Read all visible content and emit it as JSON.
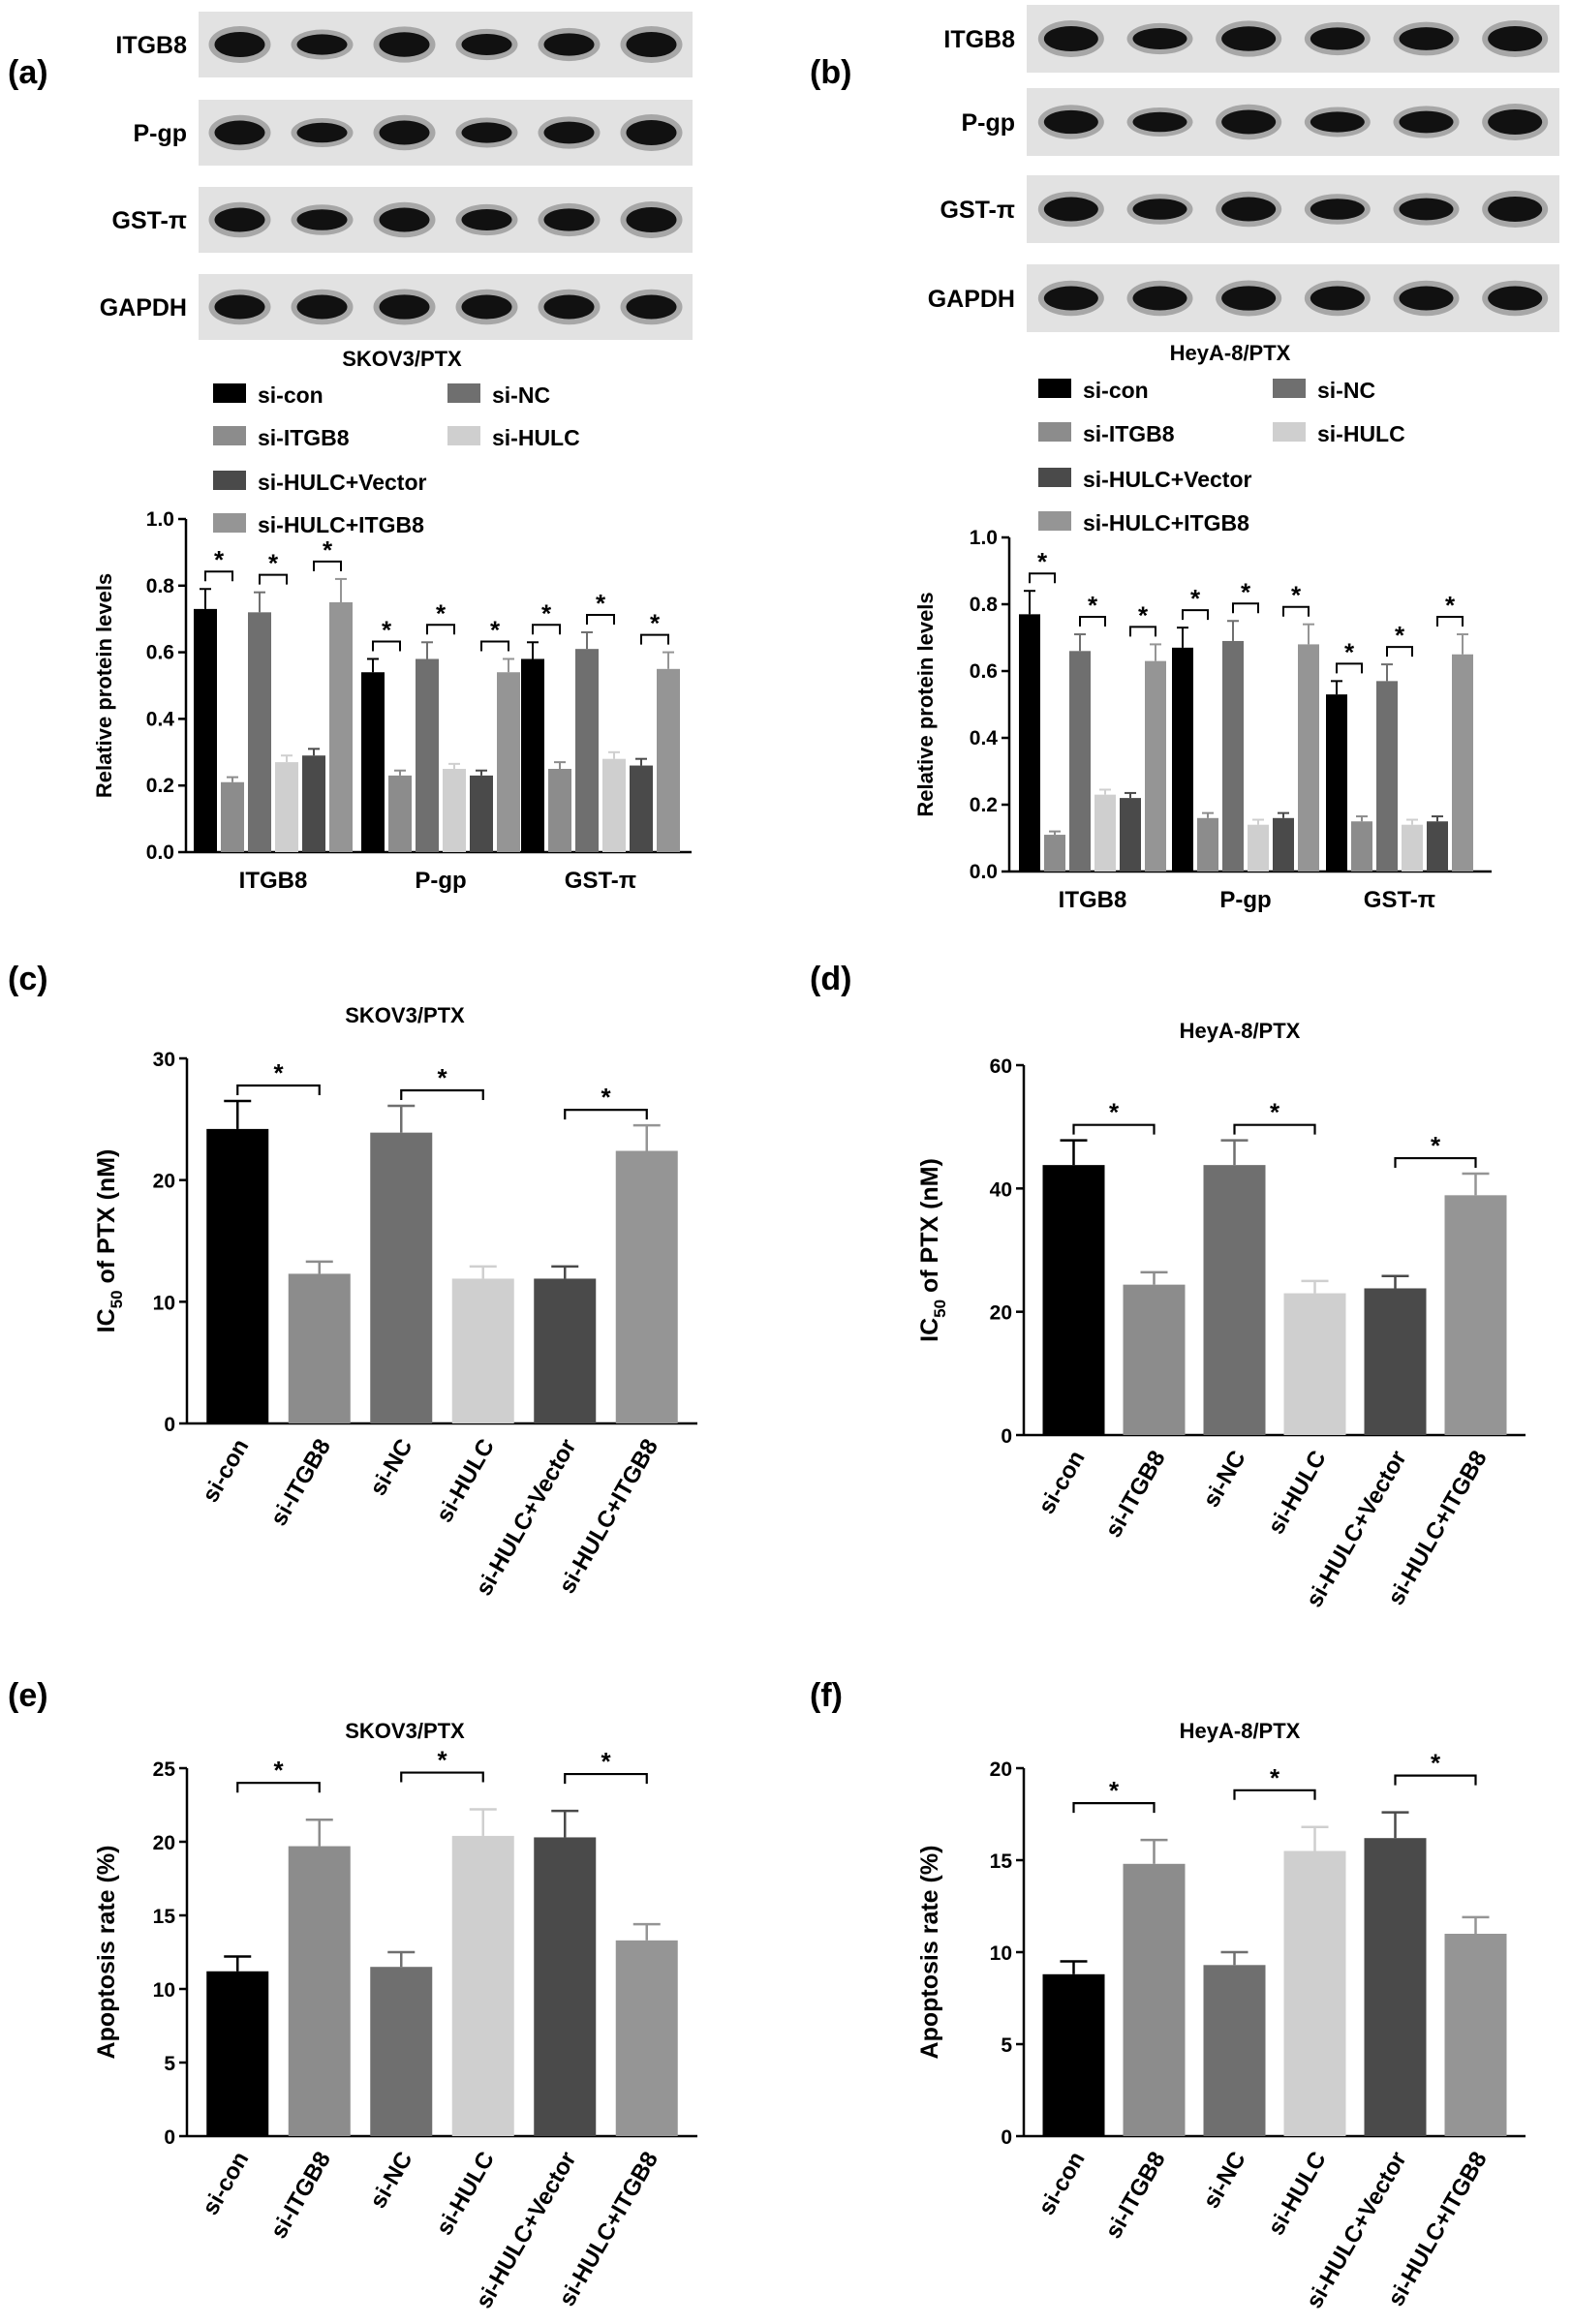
{
  "figure": {
    "panel_labels": [
      "(a)",
      "(b)",
      "(c)",
      "(d)",
      "(e)",
      "(f)"
    ],
    "significance_symbol": "*",
    "legend_labels": [
      "si-con",
      "si-NC",
      "si-ITGB8",
      "si-HULC",
      "si-HULC+Vector",
      "si-HULC+ITGB8"
    ],
    "colors": {
      "si-con": "#000000",
      "si-ITGB8": "#8c8c8c",
      "si-NC": "#6f6f6f",
      "si-HULC": "#cfcfcf",
      "si-HULC+Vector": "#4a4a4a",
      "si-HULC+ITGB8": "#959595"
    }
  },
  "blots": [
    {
      "panel": "(a)",
      "rows": [
        "ITGB8",
        "P-gp",
        "GST-π",
        "GAPDH"
      ]
    },
    {
      "panel": "(b)",
      "rows": [
        "ITGB8",
        "P-gp",
        "GST-π",
        "GAPDH"
      ]
    }
  ],
  "chart_data": [
    {
      "panel": "(a)",
      "type": "bar",
      "title": "SKOV3/PTX",
      "xlabel": "",
      "ylabel": "Relative protein levels",
      "ylim": [
        0,
        1.0
      ],
      "yticks": [
        "0.0",
        "0.2",
        "0.4",
        "0.6",
        "0.8",
        "1.0"
      ],
      "categories": [
        "ITGB8",
        "P-gp",
        "GST-π"
      ],
      "series": [
        {
          "name": "si-con",
          "values": [
            0.73,
            0.54,
            0.58
          ],
          "errors": [
            0.06,
            0.04,
            0.05
          ]
        },
        {
          "name": "si-ITGB8",
          "values": [
            0.21,
            0.23,
            0.25
          ],
          "errors": [
            0.015,
            0.015,
            0.02
          ]
        },
        {
          "name": "si-NC",
          "values": [
            0.72,
            0.58,
            0.61
          ],
          "errors": [
            0.06,
            0.05,
            0.05
          ]
        },
        {
          "name": "si-HULC",
          "values": [
            0.27,
            0.25,
            0.28
          ],
          "errors": [
            0.02,
            0.015,
            0.02
          ]
        },
        {
          "name": "si-HULC+Vector",
          "values": [
            0.29,
            0.23,
            0.26
          ],
          "errors": [
            0.02,
            0.015,
            0.02
          ]
        },
        {
          "name": "si-HULC+ITGB8",
          "values": [
            0.75,
            0.54,
            0.55
          ],
          "errors": [
            0.07,
            0.04,
            0.05
          ]
        }
      ],
      "significance": "*"
    },
    {
      "panel": "(b)",
      "type": "bar",
      "title": "HeyA-8/PTX",
      "xlabel": "",
      "ylabel": "Relative protein levels",
      "ylim": [
        0,
        1.0
      ],
      "yticks": [
        "0.0",
        "0.2",
        "0.4",
        "0.6",
        "0.8",
        "1.0"
      ],
      "categories": [
        "ITGB8",
        "P-gp",
        "GST-π"
      ],
      "series": [
        {
          "name": "si-con",
          "values": [
            0.77,
            0.67,
            0.53
          ],
          "errors": [
            0.07,
            0.06,
            0.04
          ]
        },
        {
          "name": "si-ITGB8",
          "values": [
            0.11,
            0.16,
            0.15
          ],
          "errors": [
            0.01,
            0.015,
            0.015
          ]
        },
        {
          "name": "si-NC",
          "values": [
            0.66,
            0.69,
            0.57
          ],
          "errors": [
            0.05,
            0.06,
            0.05
          ]
        },
        {
          "name": "si-HULC",
          "values": [
            0.23,
            0.14,
            0.14
          ],
          "errors": [
            0.015,
            0.015,
            0.015
          ]
        },
        {
          "name": "si-HULC+Vector",
          "values": [
            0.22,
            0.16,
            0.15
          ],
          "errors": [
            0.015,
            0.015,
            0.015
          ]
        },
        {
          "name": "si-HULC+ITGB8",
          "values": [
            0.63,
            0.68,
            0.65
          ],
          "errors": [
            0.05,
            0.06,
            0.06
          ]
        }
      ],
      "significance": "*"
    },
    {
      "panel": "(c)",
      "type": "bar",
      "title": "SKOV3/PTX",
      "xlabel": "",
      "ylabel": "IC50 of PTX (nM)",
      "ylabel_parts": [
        "IC",
        "50",
        " of PTX (nM)"
      ],
      "ylim": [
        0,
        30
      ],
      "yticks": [
        "0",
        "10",
        "20",
        "30"
      ],
      "categories": [
        "si-con",
        "si-ITGB8",
        "si-NC",
        "si-HULC",
        "si-HULC+Vector",
        "si-HULC+ITGB8"
      ],
      "values": [
        24.2,
        12.3,
        23.9,
        11.9,
        11.9,
        22.4
      ],
      "errors": [
        2.3,
        1.0,
        2.2,
        1.0,
        1.0,
        2.1
      ],
      "significance_pairs": [
        [
          0,
          1
        ],
        [
          2,
          3
        ],
        [
          4,
          5
        ]
      ],
      "significance": "*"
    },
    {
      "panel": "(d)",
      "type": "bar",
      "title": "HeyA-8/PTX",
      "xlabel": "",
      "ylabel": "IC50 of PTX (nM)",
      "ylabel_parts": [
        "IC",
        "50",
        " of PTX (nM)"
      ],
      "ylim": [
        0,
        60
      ],
      "yticks": [
        "0",
        "20",
        "40",
        "60"
      ],
      "categories": [
        "si-con",
        "si-ITGB8",
        "si-NC",
        "si-HULC",
        "si-HULC+Vector",
        "si-HULC+ITGB8"
      ],
      "values": [
        43.8,
        24.4,
        43.8,
        23.0,
        23.8,
        38.9
      ],
      "errors": [
        4.0,
        2.0,
        4.0,
        2.0,
        2.0,
        3.5
      ],
      "significance_pairs": [
        [
          0,
          1
        ],
        [
          2,
          3
        ],
        [
          4,
          5
        ]
      ],
      "significance": "*"
    },
    {
      "panel": "(e)",
      "type": "bar",
      "title": "SKOV3/PTX",
      "xlabel": "",
      "ylabel": "Apoptosis rate (%)",
      "ylim": [
        0,
        25
      ],
      "yticks": [
        "0",
        "5",
        "10",
        "15",
        "20",
        "25"
      ],
      "categories": [
        "si-con",
        "si-ITGB8",
        "si-NC",
        "si-HULC",
        "si-HULC+Vector",
        "si-HULC+ITGB8"
      ],
      "values": [
        11.2,
        19.7,
        11.5,
        20.4,
        20.3,
        13.3
      ],
      "errors": [
        1.0,
        1.8,
        1.0,
        1.8,
        1.8,
        1.1
      ],
      "significance_pairs": [
        [
          0,
          1
        ],
        [
          2,
          3
        ],
        [
          4,
          5
        ]
      ],
      "significance": "*"
    },
    {
      "panel": "(f)",
      "type": "bar",
      "title": "HeyA-8/PTX",
      "xlabel": "",
      "ylabel": "Apoptosis rate (%)",
      "ylim": [
        0,
        20
      ],
      "yticks": [
        "0",
        "5",
        "10",
        "15",
        "20"
      ],
      "categories": [
        "si-con",
        "si-ITGB8",
        "si-NC",
        "si-HULC",
        "si-HULC+Vector",
        "si-HULC+ITGB8"
      ],
      "values": [
        8.8,
        14.8,
        9.3,
        15.5,
        16.2,
        11.0
      ],
      "errors": [
        0.7,
        1.3,
        0.7,
        1.3,
        1.4,
        0.9
      ],
      "significance_pairs": [
        [
          0,
          1
        ],
        [
          2,
          3
        ],
        [
          4,
          5
        ]
      ],
      "significance": "*"
    }
  ]
}
